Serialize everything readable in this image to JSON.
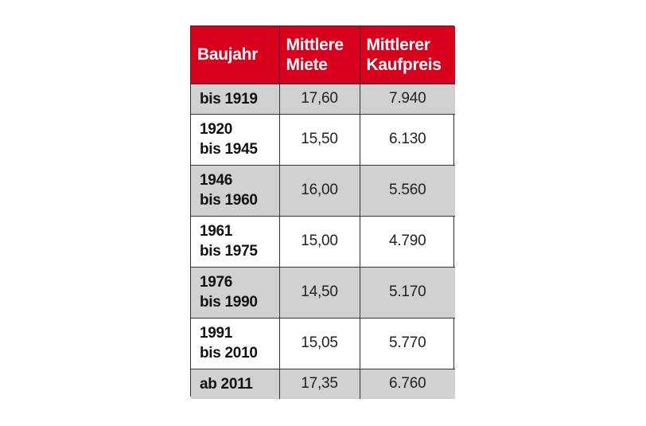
{
  "chart_data": {
    "type": "table",
    "columns": [
      {
        "lines": [
          "Baujahr"
        ]
      },
      {
        "lines": [
          "Mittlere",
          "Miete"
        ]
      },
      {
        "lines": [
          "Mittlerer",
          "Kaufpreis"
        ]
      }
    ],
    "rows": [
      {
        "period": [
          "bis 1919"
        ],
        "miete": "17,60",
        "kaufpreis": "7.940",
        "shaded": true
      },
      {
        "period": [
          "1920",
          "bis 1945"
        ],
        "miete": "15,50",
        "kaufpreis": "6.130",
        "shaded": false
      },
      {
        "period": [
          "1946",
          "bis 1960"
        ],
        "miete": "16,00",
        "kaufpreis": "5.560",
        "shaded": true
      },
      {
        "period": [
          "1961",
          "bis 1975"
        ],
        "miete": "15,00",
        "kaufpreis": "4.790",
        "shaded": false
      },
      {
        "period": [
          "1976",
          "bis 1990"
        ],
        "miete": "14,50",
        "kaufpreis": "5.170",
        "shaded": true
      },
      {
        "period": [
          "1991",
          "bis 2010"
        ],
        "miete": "15,05",
        "kaufpreis": "5.770",
        "shaded": false
      },
      {
        "period": [
          "ab 2011"
        ],
        "miete": "17,35",
        "kaufpreis": "6.760",
        "shaded": true
      }
    ]
  },
  "colors": {
    "header_background": "#d8001c",
    "header_text": "#ffffff",
    "shaded_row": "#d1d1d1",
    "plain_row": "#ffffff",
    "grid_lines": "#333333"
  }
}
